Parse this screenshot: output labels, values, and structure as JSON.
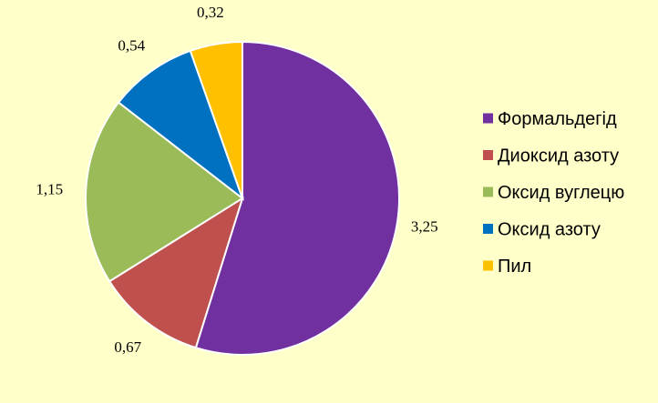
{
  "chart_data": {
    "type": "pie",
    "title": "",
    "categories": [
      "Формальдегід",
      "Диоксид азоту",
      "Оксид вуглецю",
      "Оксид азоту",
      "Пил"
    ],
    "values": [
      3.25,
      0.67,
      1.15,
      0.54,
      0.32
    ],
    "value_labels": [
      "3,25",
      "0,67",
      "1,15",
      "0,54",
      "0,32"
    ],
    "colors": [
      "#7030A0",
      "#C0504D",
      "#9BBB59",
      "#0070C0",
      "#FFC000"
    ],
    "legend_position": "right",
    "start_angle": "12 o'clock",
    "direction": "clockwise"
  },
  "background_color": "#FFFFC9"
}
